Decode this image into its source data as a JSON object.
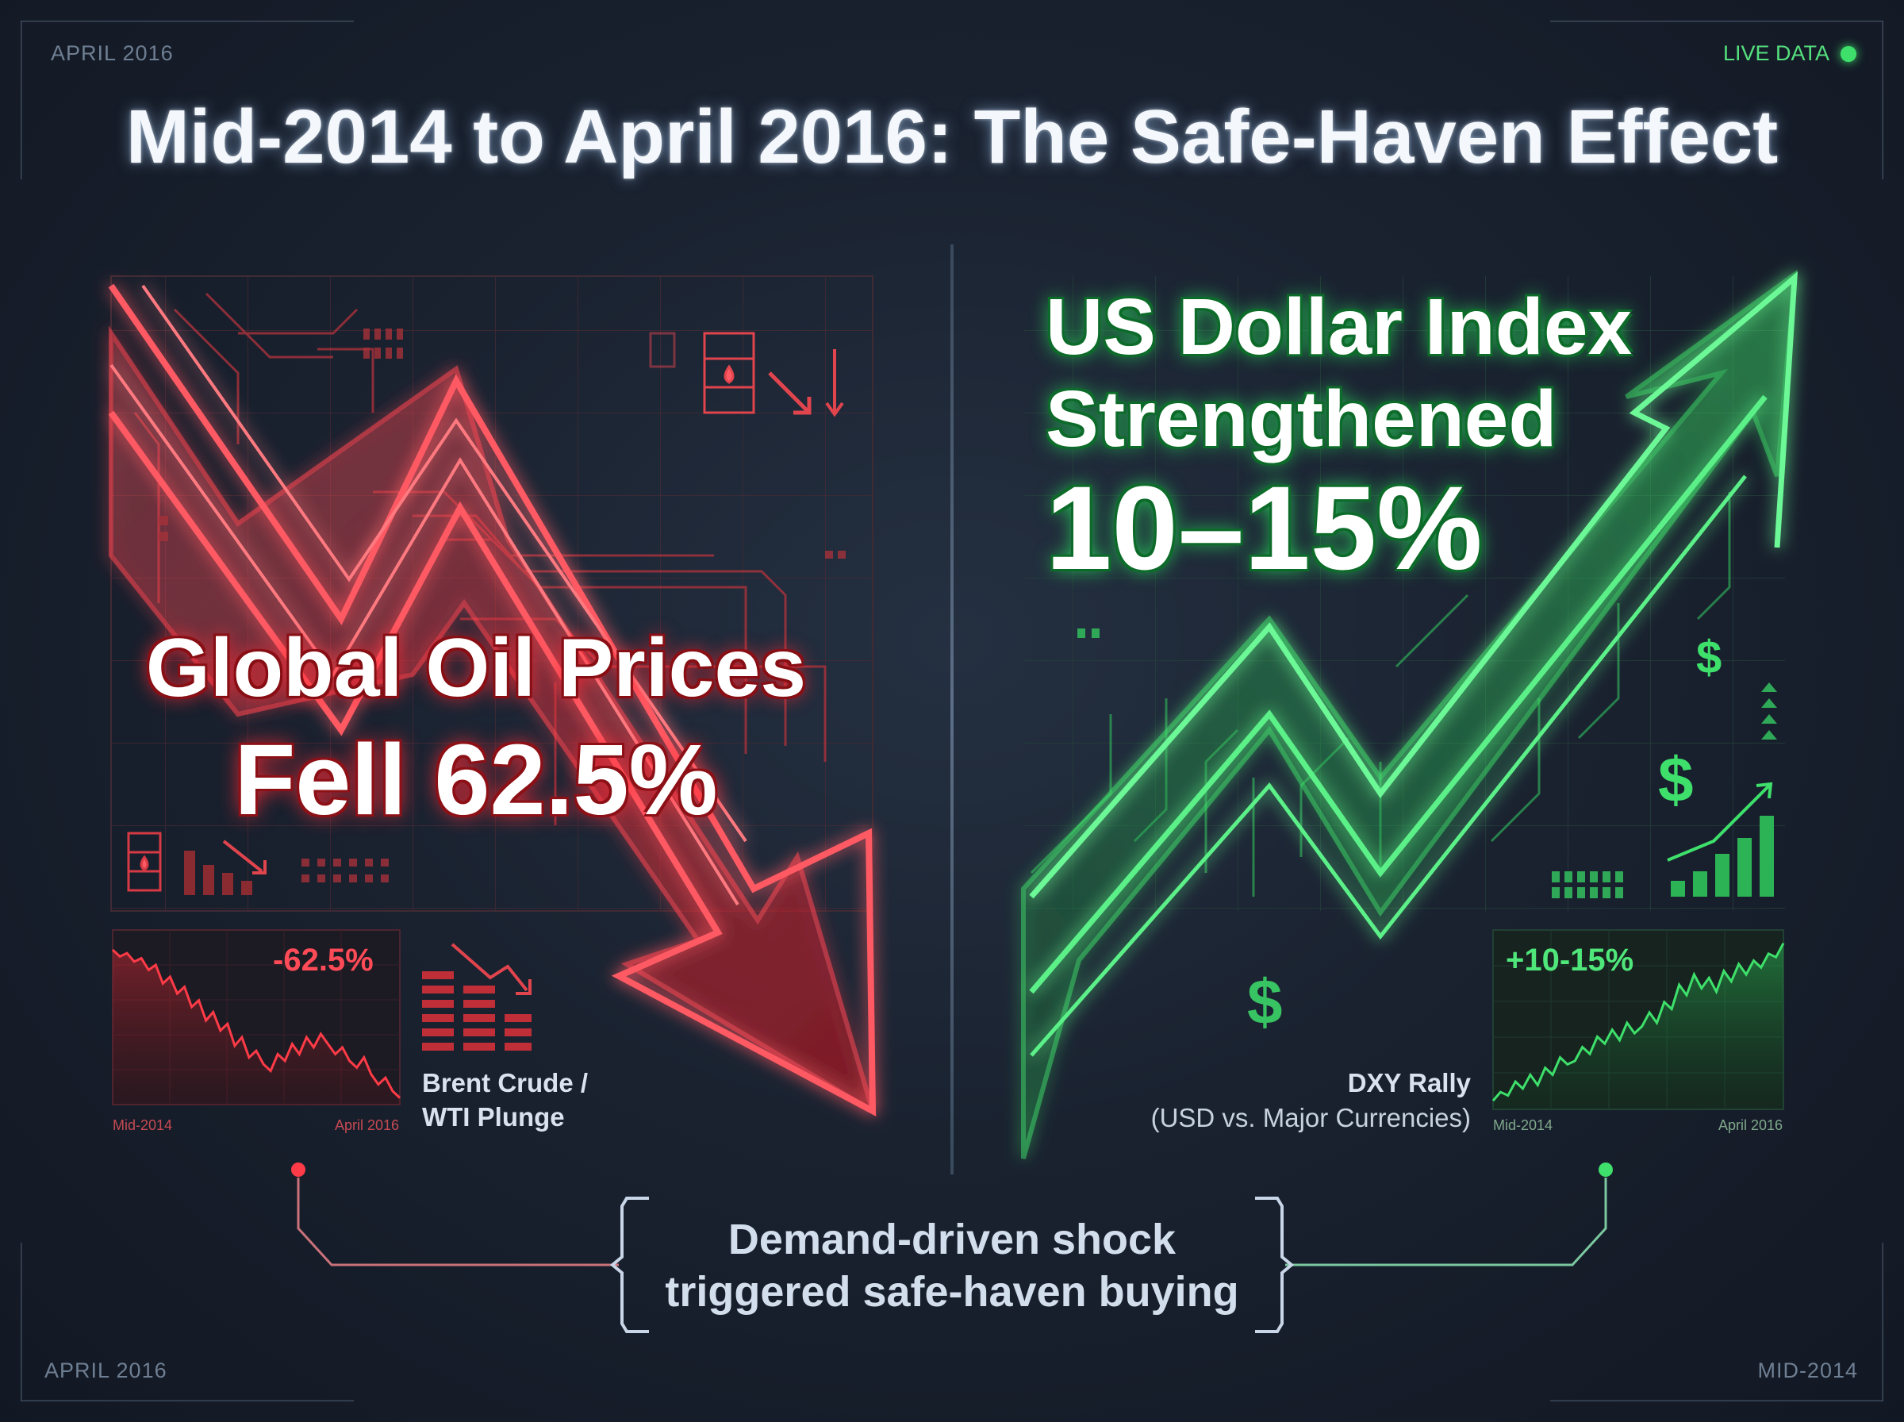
{
  "corner_labels": {
    "top_left": "APRIL 2016",
    "top_right_live": "LIVE DATA",
    "bottom_left": "APRIL 2016",
    "bottom_right": "MID-2014"
  },
  "title": "Mid-2014 to April 2016: The Safe-Haven Effect",
  "oil_panel": {
    "headline_line1": "Global Oil Prices",
    "headline_line2": "Fell 62.5%",
    "mini_chart_change": "-62.5%",
    "mini_chart_x_start": "Mid-2014",
    "mini_chart_x_end": "April 2016",
    "caption_line1": "Brent Crude /",
    "caption_line2": "WTI Plunge",
    "accent_color": "#ff3b47"
  },
  "usd_panel": {
    "headline_line1": "US Dollar Index",
    "headline_line2": "Strengthened",
    "headline_line3": "10–15%",
    "mini_chart_change": "+10-15%",
    "mini_chart_x_start": "Mid-2014",
    "mini_chart_x_end": "April 2016",
    "caption_line1": "DXY Rally",
    "caption_line2": "(USD vs. Major Currencies)",
    "accent_color": "#3ee06b"
  },
  "bottom": {
    "line1": "Demand-driven shock",
    "line2": "triggered safe-haven buying"
  }
}
